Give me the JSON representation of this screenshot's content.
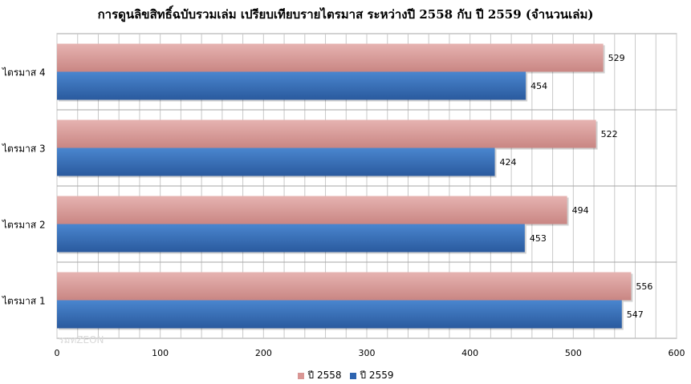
{
  "chart_data": {
    "type": "bar",
    "orientation": "horizontal",
    "title": "การดูนลิขสิทธิ์ฉบับรวมเล่ม เปรียบเทียบรายไตรมาส ระหว่างปี 2558 กับ ปี 2559 (จำนวนเล่ม)",
    "categories": [
      "ไตรมาส 1",
      "ไตรมาส 2",
      "ไตรมาส 3",
      "ไตรมาส 4"
    ],
    "series": [
      {
        "name": "ปี 2558",
        "values": [
          556,
          494,
          522,
          529
        ],
        "color": "#d99694"
      },
      {
        "name": "ปี 2559",
        "values": [
          547,
          453,
          424,
          454
        ],
        "color": "#2e64b0"
      }
    ],
    "xlim": [
      0,
      600
    ],
    "xticks": [
      "0",
      "100",
      "200",
      "300",
      "400",
      "500",
      "600"
    ],
    "xlabel": "",
    "ylabel": "",
    "grid": true,
    "legend": "bottom",
    "watermark": "รมทZEON"
  }
}
